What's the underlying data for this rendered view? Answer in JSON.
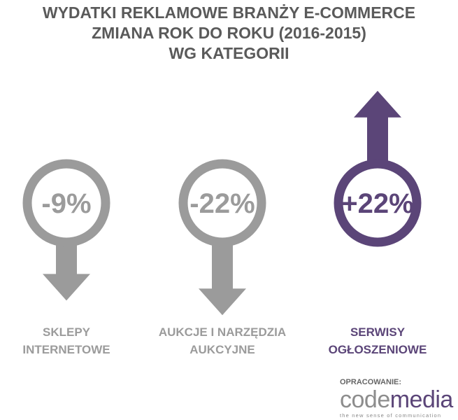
{
  "chart_data": {
    "type": "arrow-infographic",
    "title": "WYDATKI REKLAMOWE BRANŻY E-COMMERCE\nZMIANA ROK DO ROKU (2016-2015)\nWG KATEGORII",
    "categories": [
      "SKLEPY\nINTERNETOWE",
      "AUKCJE I NARZĘDZIA\nAUKCYJNE",
      "SERWISY\nOGŁOSZENIOWE"
    ],
    "values": [
      -9,
      -22,
      22
    ],
    "value_labels": [
      "-9%",
      "-22%",
      "+22%"
    ],
    "colors": [
      "#9b9b9b",
      "#9b9b9b",
      "#5b4578"
    ]
  },
  "footer": {
    "label": "OPRACOWANIE:",
    "brand": [
      "code",
      "media"
    ],
    "tagline": "the new sense of communication"
  }
}
